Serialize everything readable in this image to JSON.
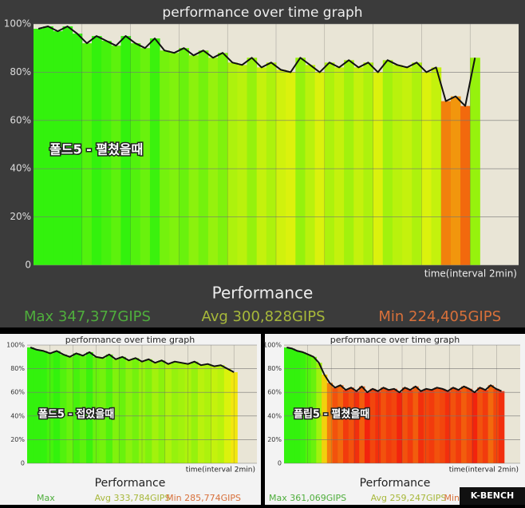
{
  "chart_data": [
    {
      "type": "line",
      "title": "performance over time graph",
      "x_label": "time(interval 2min)",
      "heading": "Performance",
      "annotation": "폴드5 - 펼쳤을때",
      "stats": [
        "Max 347,377GIPS",
        "Avg 300,828GIPS",
        "Min 224,405GIPS"
      ],
      "stat_colors": [
        "#4fae3c",
        "#a7b83a",
        "#d8703a"
      ],
      "ylim": [
        0,
        100
      ],
      "yticks": [
        0,
        {
          "value": 20,
          "label": "20%"
        },
        {
          "value": 40,
          "label": "40%"
        },
        {
          "value": 60,
          "label": "60%"
        },
        {
          "value": 80,
          "label": "80%"
        },
        {
          "value": 100,
          "label": "100%"
        }
      ],
      "grid": true,
      "line_color": "#111111",
      "values": [
        98,
        99,
        97,
        99,
        96,
        92,
        95,
        93,
        91,
        95,
        92,
        90,
        94,
        89,
        88,
        90,
        87,
        89,
        86,
        88,
        84,
        83,
        86,
        82,
        84,
        81,
        80,
        86,
        83,
        80,
        84,
        82,
        85,
        82,
        84,
        80,
        85,
        83,
        82,
        84,
        80,
        82,
        68,
        70,
        66,
        86,
        null,
        null,
        null,
        null
      ]
    },
    {
      "type": "line",
      "title": "performance over time graph",
      "x_label": "time(interval 2min)",
      "heading": "Performance",
      "annotation": "폴드5 - 접었을때",
      "stats": [
        "Max",
        "Avg 333,784GIPS",
        "Min 285,774GIPS"
      ],
      "stat_colors": [
        "#4fae3c",
        "#a7b83a",
        "#d8703a"
      ],
      "ylim": [
        0,
        100
      ],
      "yticks": [
        0,
        {
          "value": 20,
          "label": "20%"
        },
        {
          "value": 40,
          "label": "40%"
        },
        {
          "value": 60,
          "label": "60%"
        },
        {
          "value": 80,
          "label": "80%"
        },
        {
          "value": 100,
          "label": "100%"
        }
      ],
      "grid": true,
      "line_color": "#111111",
      "values": [
        98,
        96,
        95,
        93,
        95,
        92,
        90,
        93,
        91,
        94,
        90,
        89,
        92,
        88,
        90,
        87,
        89,
        86,
        88,
        85,
        87,
        84,
        86,
        85,
        84,
        86,
        83,
        84,
        82,
        83,
        80,
        77,
        null,
        null,
        null
      ]
    },
    {
      "type": "line",
      "title": "performance over time graph",
      "x_label": "time(interval 2min)",
      "heading": "Performance",
      "annotation": "플립5 - 펼쳤을때",
      "stats": [
        "Max 361,069GIPS",
        "Avg 259,247GIPS",
        "Min"
      ],
      "stat_colors": [
        "#4fae3c",
        "#a7b83a",
        "#d8703a"
      ],
      "ylim": [
        0,
        100
      ],
      "yticks": [
        0,
        {
          "value": 20,
          "label": "20%"
        },
        {
          "value": 40,
          "label": "40%"
        },
        {
          "value": 60,
          "label": "60%"
        },
        {
          "value": 80,
          "label": "80%"
        },
        {
          "value": 100,
          "label": "100%"
        }
      ],
      "grid": true,
      "line_color": "#111111",
      "values": [
        98,
        97,
        95,
        94,
        92,
        90,
        85,
        75,
        68,
        64,
        66,
        62,
        64,
        61,
        65,
        60,
        63,
        61,
        64,
        62,
        63,
        60,
        64,
        62,
        65,
        61,
        63,
        62,
        64,
        63,
        61,
        64,
        62,
        65,
        63,
        60,
        64,
        62,
        66,
        63,
        61,
        null,
        null,
        null
      ]
    }
  ],
  "logo": "K-BENCH"
}
